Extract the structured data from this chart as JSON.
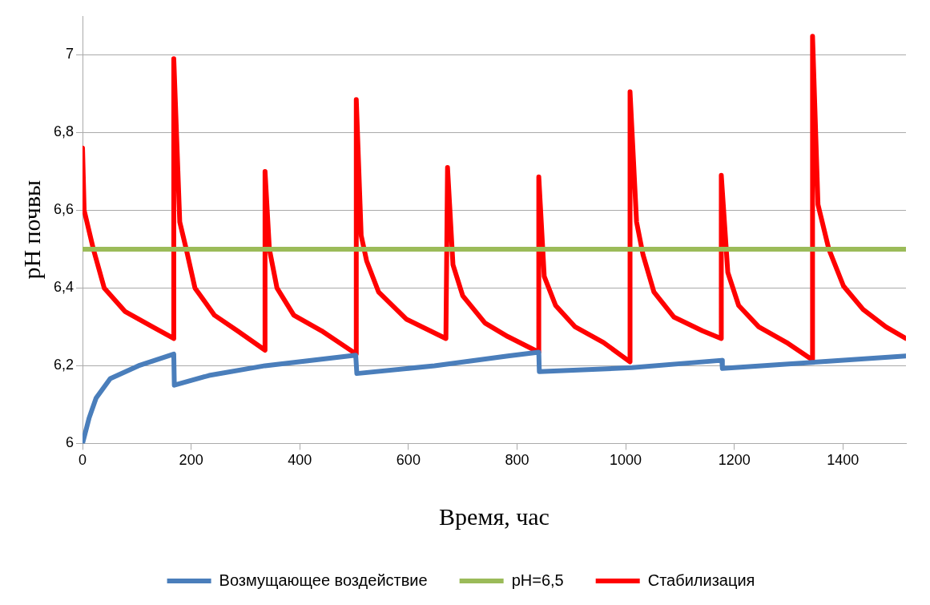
{
  "chart_data": {
    "type": "line",
    "xlabel": "Время, час",
    "ylabel": "pH почвы",
    "xlim": [
      0,
      1516
    ],
    "xticks": [
      0,
      200,
      400,
      600,
      800,
      1000,
      1200,
      1400
    ],
    "ylim": [
      6,
      7.1
    ],
    "yticks": [
      6,
      {
        "value": 6.2,
        "label": "6,2"
      },
      {
        "value": 6.4,
        "label": "6,4"
      },
      {
        "value": 6.6,
        "label": "6,6"
      },
      {
        "value": 6.8,
        "label": "6,8"
      },
      7
    ],
    "grid": "y",
    "legend": "bottom",
    "marker": "none",
    "line_style": "solid",
    "series": [
      {
        "name": "Возмущающее воздействие",
        "color": "#4a7ebb",
        "x": [
          0,
          12,
          25,
          51,
          103,
          168,
          169,
          233,
          336,
          503,
          505,
          648,
          783,
          840,
          841,
          1012,
          1177,
          1178,
          1516
        ],
        "values": [
          6.0,
          6.065,
          6.117,
          6.167,
          6.2,
          6.23,
          6.15,
          6.175,
          6.2,
          6.227,
          6.18,
          6.2,
          6.225,
          6.235,
          6.185,
          6.195,
          6.214,
          6.193,
          6.225
        ]
      },
      {
        "name": "pH=6,5",
        "color": "#9bbb59",
        "x": [
          0,
          1516
        ],
        "values": [
          6.5,
          6.5
        ]
      },
      {
        "name": "Стабилизация",
        "color": "#ff0000",
        "x": [
          0,
          3,
          20,
          40,
          78,
          129,
          168,
          168,
          179,
          191,
          207,
          243,
          285,
          336,
          336,
          344,
          358,
          389,
          440,
          504,
          504,
          513,
          523,
          545,
          596,
          669,
          672,
          682,
          700,
          741,
          783,
          840,
          840,
          850,
          871,
          907,
          959,
          1008,
          1008,
          1020,
          1032,
          1052,
          1089,
          1141,
          1176,
          1176,
          1188,
          1208,
          1245,
          1296,
          1344,
          1344,
          1354,
          1374,
          1401,
          1437,
          1479,
          1516
        ],
        "values": [
          6.76,
          6.6,
          6.5,
          6.4,
          6.34,
          6.3,
          6.27,
          6.99,
          6.57,
          6.5,
          6.4,
          6.33,
          6.29,
          6.24,
          6.7,
          6.5,
          6.4,
          6.33,
          6.29,
          6.23,
          6.885,
          6.535,
          6.47,
          6.39,
          6.32,
          6.27,
          6.71,
          6.46,
          6.38,
          6.31,
          6.275,
          6.235,
          6.686,
          6.43,
          6.355,
          6.3,
          6.26,
          6.21,
          6.905,
          6.57,
          6.485,
          6.39,
          6.325,
          6.29,
          6.27,
          6.69,
          6.44,
          6.355,
          6.3,
          6.26,
          6.215,
          7.048,
          6.615,
          6.5,
          6.405,
          6.345,
          6.3,
          6.27
        ]
      }
    ]
  }
}
